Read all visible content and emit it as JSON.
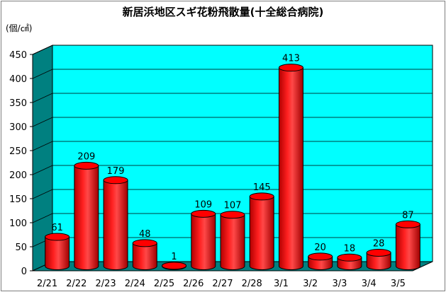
{
  "chart_data": {
    "type": "bar",
    "title": "新居浜地区スギ花粉飛散量(十全総合病院)",
    "ylabel": "(個/㎠)",
    "ylim": [
      0,
      450
    ],
    "yticks": [
      0,
      50,
      100,
      150,
      200,
      250,
      300,
      350,
      400,
      450
    ],
    "categories": [
      "2/21",
      "2/22",
      "2/23",
      "2/24",
      "2/25",
      "2/26",
      "2/27",
      "2/28",
      "3/1",
      "3/2",
      "3/3",
      "3/4",
      "3/5"
    ],
    "values": [
      61,
      209,
      179,
      48,
      1,
      109,
      107,
      145,
      413,
      20,
      18,
      28,
      87
    ],
    "data_labels": [
      "61",
      "209",
      "179",
      "48",
      "1",
      "109",
      "107",
      "145",
      "413",
      "20",
      "18",
      "28",
      "87"
    ],
    "grid": true,
    "legend": "none",
    "colors": {
      "plot_background": "#00ffff",
      "floor": "#008080",
      "bar_fill": "#ff0000",
      "bar_dark": "#a00000",
      "bar_top": "#ff5a5a",
      "grid": "#000000"
    }
  }
}
